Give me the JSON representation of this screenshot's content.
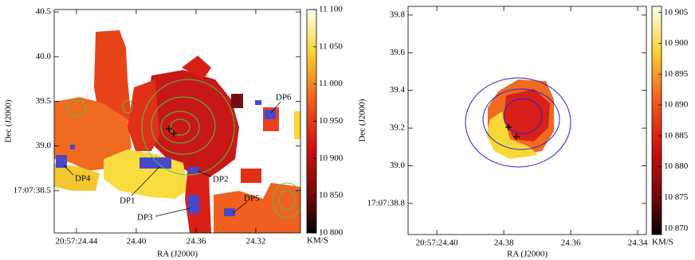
{
  "chart_data": [
    {
      "type": "heatmap",
      "xlabel": "RA (J2000)",
      "ylabel": "Dec (J2000)",
      "xlim": [
        24.4549,
        24.2901
      ],
      "ylim": [
        38.027,
        40.527
      ],
      "xticks": [
        {
          "value": 24.44,
          "label": "20:57:24.44"
        },
        {
          "value": 24.4,
          "label": "24.40"
        },
        24.36,
        24.32
      ],
      "yticks": [
        40.5,
        {
          "value": 40.0,
          "label": "40.0"
        },
        39.5,
        {
          "value": 39.0,
          "label": "39.0"
        },
        {
          "value": 38.5,
          "label": "17:07:38.5"
        }
      ],
      "colorbar": {
        "label": "KM/S",
        "clim": [
          10800,
          11100
        ],
        "ticks": [
          {
            "value": 10800,
            "label": "10 800"
          },
          {
            "value": 10850,
            "label": "10 850"
          },
          {
            "value": 10900,
            "label": "10 900"
          },
          {
            "value": 10950,
            "label": "10 950"
          },
          {
            "value": 11000,
            "label": "11 000"
          },
          {
            "value": 11050,
            "label": "11 050"
          },
          {
            "value": 11100,
            "label": "11 100"
          }
        ]
      },
      "annotations": [
        "DP1",
        "DP2",
        "DP3",
        "DP4",
        "DP5",
        "DP6"
      ]
    },
    {
      "type": "heatmap",
      "xlabel": "RA (J2000)",
      "ylabel": "Dec (J2000)",
      "xlim": [
        24.4086,
        24.3374
      ],
      "ylim": [
        38.635,
        39.846
      ],
      "xticks": [
        {
          "value": 24.4,
          "label": "20:57:24.40"
        },
        24.38,
        24.36,
        24.34
      ],
      "yticks": [
        {
          "value": 38.8,
          "label": "17:07:38.8"
        },
        {
          "value": 39.0,
          "label": "39.0"
        },
        39.2,
        39.4,
        39.6,
        39.8
      ],
      "colorbar": {
        "label": "KM/S",
        "clim": [
          10869,
          10906
        ],
        "ticks": [
          {
            "value": 10870,
            "label": "10 870"
          },
          {
            "value": 10875,
            "label": "10 875"
          },
          {
            "value": 10880,
            "label": "10 880"
          },
          {
            "value": 10885,
            "label": "10 885"
          },
          {
            "value": 10890,
            "label": "10 890"
          },
          {
            "value": 10895,
            "label": "10 895"
          },
          {
            "value": 10900,
            "label": "10 900"
          },
          {
            "value": 10905,
            "label": "10 905"
          }
        ]
      }
    }
  ]
}
